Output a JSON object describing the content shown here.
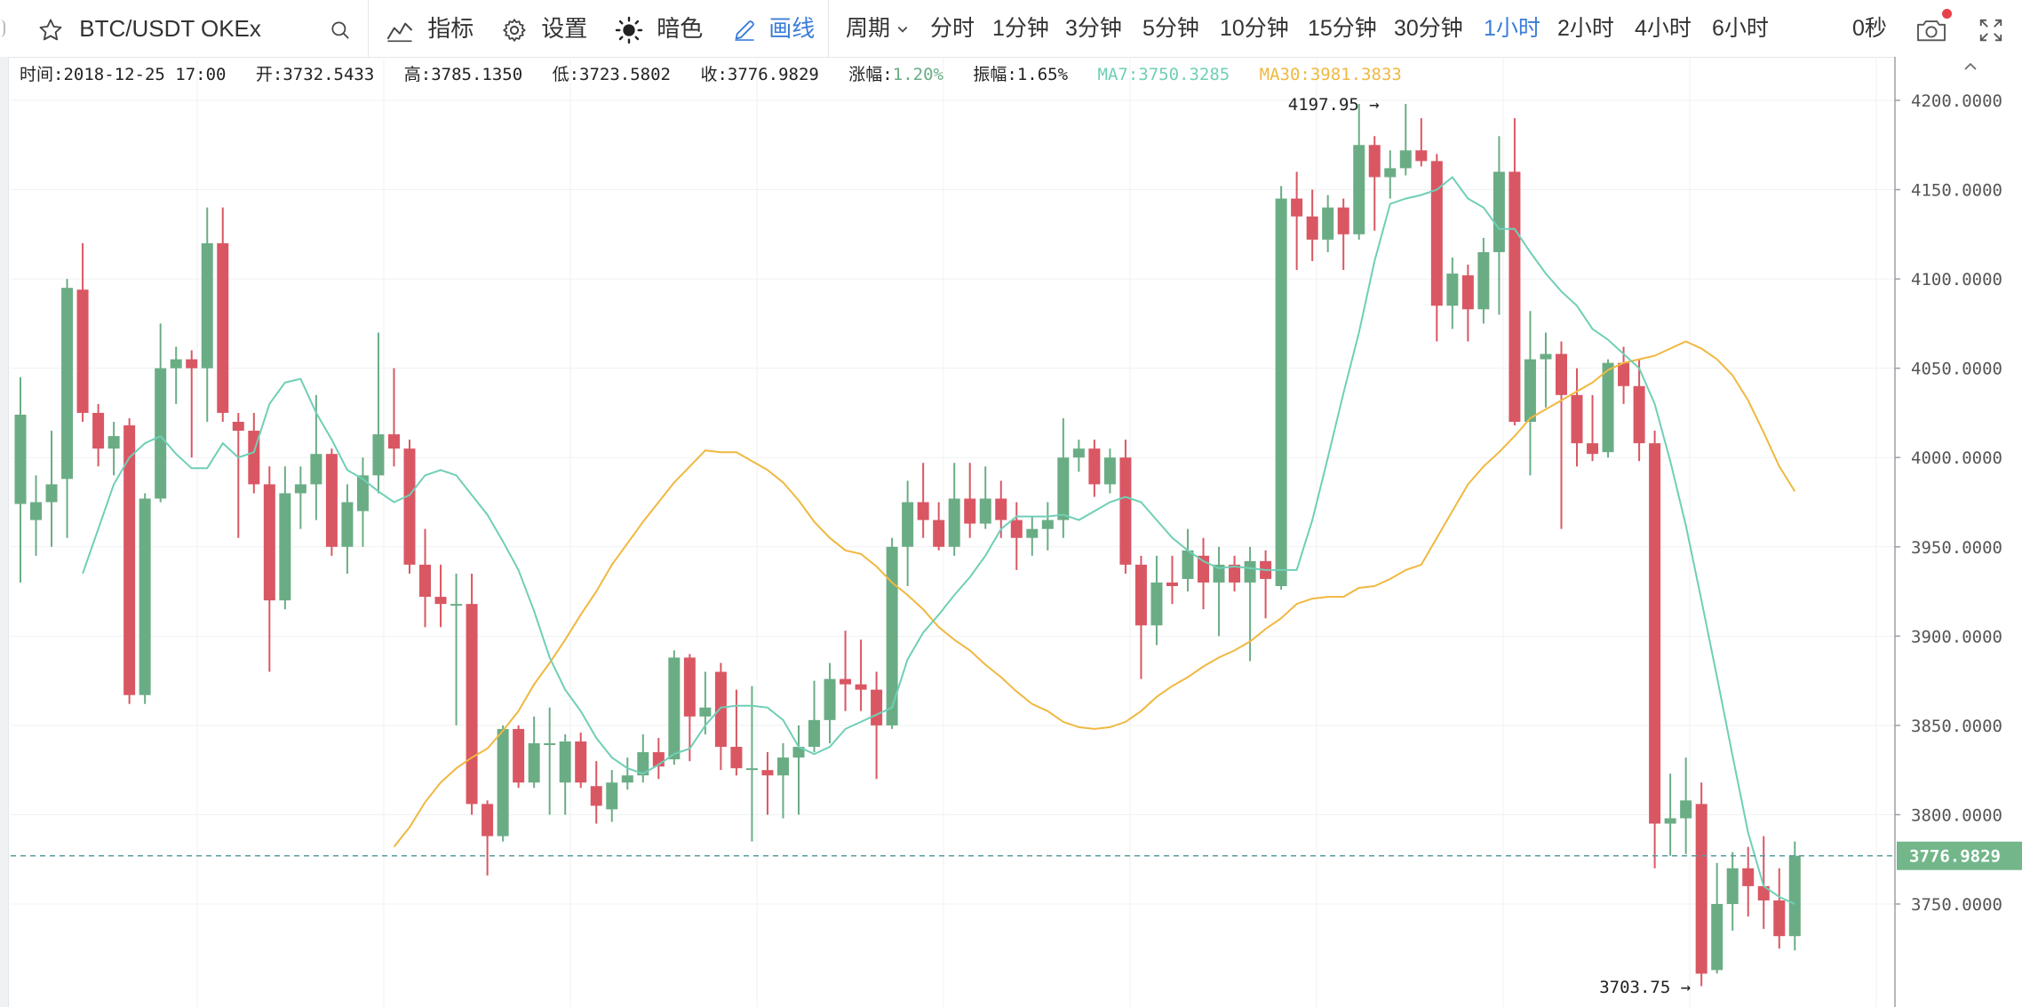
{
  "toolbar": {
    "symbol": "BTC/USDT OKEx",
    "indicators_label": "指标",
    "settings_label": "设置",
    "dark_label": "暗色",
    "draw_label": "画线",
    "period_label": "周期",
    "periods": [
      "分时",
      "1分钟",
      "3分钟",
      "5分钟",
      "10分钟",
      "15分钟",
      "30分钟",
      "1小时",
      "2小时",
      "4小时",
      "6小时"
    ],
    "active_period": "1小时",
    "countdown": "0秒",
    "icons": {
      "star": "star-icon",
      "search": "search-icon",
      "indicators": "line-chart-icon",
      "settings": "gear-icon",
      "dark": "sun-icon",
      "draw": "pencil-icon",
      "period": "chevron-down-icon",
      "screenshot": "camera-icon",
      "fullscreen": "fullscreen-icon",
      "collapse": "chevron-up-icon"
    }
  },
  "info": {
    "time": "时间:2018-12-25 17:00",
    "open": "开:3732.5433",
    "high": "高:3785.1350",
    "low": "低:3723.5802",
    "close": "收:3776.9829",
    "change_label": "涨幅:",
    "change_value": "1.20%",
    "amplitude": "振幅:1.65%",
    "ma7": "MA7:3750.3285",
    "ma30": "MA30:3981.3833"
  },
  "colors": {
    "up": "#6aad85",
    "down": "#d95763",
    "ma7": "#6fcfb6",
    "ma30": "#f0b840",
    "active": "#3b7dd8",
    "price_tag": "#72b68a"
  },
  "chart_data": {
    "type": "candlestick",
    "symbol": "BTC/USDT OKEx",
    "interval": "1小时",
    "ylim": [
      3690,
      4225
    ],
    "yticks": [
      "4200.0000",
      "4150.0000",
      "4100.0000",
      "4050.0000",
      "4000.0000",
      "3950.0000",
      "3900.0000",
      "3850.0000",
      "3800.0000",
      "3750.0000"
    ],
    "y_axis_side": "right",
    "grid": true,
    "current_price": 3776.9829,
    "current_price_label": "3776.9829",
    "high_mark": {
      "value": 4197.95,
      "label": "4197.95"
    },
    "low_mark": {
      "value": 3703.75,
      "label": "3703.75"
    },
    "candles": [
      {
        "o": 3974,
        "h": 4045,
        "l": 3930,
        "c": 4024
      },
      {
        "o": 3965,
        "h": 3990,
        "l": 3945,
        "c": 3975
      },
      {
        "o": 3975,
        "h": 4015,
        "l": 3950,
        "c": 3985
      },
      {
        "o": 3988,
        "h": 4100,
        "l": 3955,
        "c": 4095
      },
      {
        "o": 4094,
        "h": 4120,
        "l": 4020,
        "c": 4025
      },
      {
        "o": 4025,
        "h": 4030,
        "l": 3995,
        "c": 4005
      },
      {
        "o": 4005,
        "h": 4020,
        "l": 3990,
        "c": 4012
      },
      {
        "o": 4018,
        "h": 4022,
        "l": 3862,
        "c": 3867
      },
      {
        "o": 3867,
        "h": 3980,
        "l": 3862,
        "c": 3977
      },
      {
        "o": 3977,
        "h": 4075,
        "l": 3975,
        "c": 4050
      },
      {
        "o": 4050,
        "h": 4062,
        "l": 4030,
        "c": 4055
      },
      {
        "o": 4055,
        "h": 4060,
        "l": 4000,
        "c": 4050
      },
      {
        "o": 4050,
        "h": 4140,
        "l": 4020,
        "c": 4120
      },
      {
        "o": 4120,
        "h": 4140,
        "l": 4020,
        "c": 4025
      },
      {
        "o": 4020,
        "h": 4025,
        "l": 3955,
        "c": 4015
      },
      {
        "o": 4015,
        "h": 4025,
        "l": 3980,
        "c": 3985
      },
      {
        "o": 3985,
        "h": 3995,
        "l": 3880,
        "c": 3920
      },
      {
        "o": 3920,
        "h": 3995,
        "l": 3915,
        "c": 3980
      },
      {
        "o": 3980,
        "h": 3995,
        "l": 3960,
        "c": 3985
      },
      {
        "o": 3985,
        "h": 4035,
        "l": 3965,
        "c": 4002
      },
      {
        "o": 4002,
        "h": 4005,
        "l": 3945,
        "c": 3950
      },
      {
        "o": 3950,
        "h": 3985,
        "l": 3935,
        "c": 3975
      },
      {
        "o": 3970,
        "h": 4000,
        "l": 3950,
        "c": 3990
      },
      {
        "o": 3990,
        "h": 4070,
        "l": 3980,
        "c": 4013
      },
      {
        "o": 4013,
        "h": 4050,
        "l": 3995,
        "c": 4005
      },
      {
        "o": 4005,
        "h": 4010,
        "l": 3935,
        "c": 3940
      },
      {
        "o": 3940,
        "h": 3960,
        "l": 3905,
        "c": 3922
      },
      {
        "o": 3922,
        "h": 3940,
        "l": 3905,
        "c": 3918
      },
      {
        "o": 3918,
        "h": 3935,
        "l": 3850,
        "c": 3918
      },
      {
        "o": 3918,
        "h": 3935,
        "l": 3800,
        "c": 3806
      },
      {
        "o": 3806,
        "h": 3808,
        "l": 3766,
        "c": 3788
      },
      {
        "o": 3788,
        "h": 3850,
        "l": 3785,
        "c": 3848
      },
      {
        "o": 3848,
        "h": 3850,
        "l": 3815,
        "c": 3818
      },
      {
        "o": 3818,
        "h": 3855,
        "l": 3815,
        "c": 3840
      },
      {
        "o": 3840,
        "h": 3860,
        "l": 3800,
        "c": 3840
      },
      {
        "o": 3818,
        "h": 3845,
        "l": 3800,
        "c": 3841
      },
      {
        "o": 3841,
        "h": 3846,
        "l": 3815,
        "c": 3818
      },
      {
        "o": 3816,
        "h": 3830,
        "l": 3795,
        "c": 3805
      },
      {
        "o": 3803,
        "h": 3825,
        "l": 3796,
        "c": 3818
      },
      {
        "o": 3818,
        "h": 3832,
        "l": 3814,
        "c": 3822
      },
      {
        "o": 3822,
        "h": 3845,
        "l": 3818,
        "c": 3835
      },
      {
        "o": 3835,
        "h": 3843,
        "l": 3820,
        "c": 3827
      },
      {
        "o": 3831,
        "h": 3892,
        "l": 3828,
        "c": 3888
      },
      {
        "o": 3888,
        "h": 3890,
        "l": 3830,
        "c": 3855
      },
      {
        "o": 3855,
        "h": 3880,
        "l": 3845,
        "c": 3860
      },
      {
        "o": 3880,
        "h": 3885,
        "l": 3825,
        "c": 3838
      },
      {
        "o": 3838,
        "h": 3870,
        "l": 3822,
        "c": 3826
      },
      {
        "o": 3826,
        "h": 3872,
        "l": 3785,
        "c": 3826
      },
      {
        "o": 3825,
        "h": 3835,
        "l": 3800,
        "c": 3822
      },
      {
        "o": 3822,
        "h": 3840,
        "l": 3798,
        "c": 3832
      },
      {
        "o": 3832,
        "h": 3850,
        "l": 3800,
        "c": 3838
      },
      {
        "o": 3838,
        "h": 3875,
        "l": 3835,
        "c": 3853
      },
      {
        "o": 3853,
        "h": 3885,
        "l": 3840,
        "c": 3876
      },
      {
        "o": 3876,
        "h": 3903,
        "l": 3858,
        "c": 3873
      },
      {
        "o": 3873,
        "h": 3898,
        "l": 3858,
        "c": 3870
      },
      {
        "o": 3870,
        "h": 3880,
        "l": 3820,
        "c": 3850
      },
      {
        "o": 3850,
        "h": 3955,
        "l": 3848,
        "c": 3950
      },
      {
        "o": 3950,
        "h": 3987,
        "l": 3928,
        "c": 3975
      },
      {
        "o": 3975,
        "h": 3997,
        "l": 3955,
        "c": 3965
      },
      {
        "o": 3965,
        "h": 3975,
        "l": 3948,
        "c": 3950
      },
      {
        "o": 3950,
        "h": 3997,
        "l": 3945,
        "c": 3977
      },
      {
        "o": 3977,
        "h": 3997,
        "l": 3955,
        "c": 3963
      },
      {
        "o": 3963,
        "h": 3995,
        "l": 3960,
        "c": 3977
      },
      {
        "o": 3977,
        "h": 3987,
        "l": 3955,
        "c": 3965
      },
      {
        "o": 3965,
        "h": 3975,
        "l": 3937,
        "c": 3955
      },
      {
        "o": 3955,
        "h": 3967,
        "l": 3945,
        "c": 3960
      },
      {
        "o": 3960,
        "h": 3975,
        "l": 3948,
        "c": 3965
      },
      {
        "o": 3965,
        "h": 4022,
        "l": 3955,
        "c": 4000
      },
      {
        "o": 4000,
        "h": 4010,
        "l": 3992,
        "c": 4005
      },
      {
        "o": 4005,
        "h": 4010,
        "l": 3978,
        "c": 3985
      },
      {
        "o": 3985,
        "h": 4005,
        "l": 3980,
        "c": 4000
      },
      {
        "o": 4000,
        "h": 4010,
        "l": 3935,
        "c": 3940
      },
      {
        "o": 3940,
        "h": 3945,
        "l": 3876,
        "c": 3906
      },
      {
        "o": 3906,
        "h": 3945,
        "l": 3895,
        "c": 3930
      },
      {
        "o": 3930,
        "h": 3945,
        "l": 3918,
        "c": 3928
      },
      {
        "o": 3932,
        "h": 3960,
        "l": 3925,
        "c": 3948
      },
      {
        "o": 3945,
        "h": 3955,
        "l": 3915,
        "c": 3930
      },
      {
        "o": 3930,
        "h": 3950,
        "l": 3900,
        "c": 3940
      },
      {
        "o": 3940,
        "h": 3945,
        "l": 3925,
        "c": 3930
      },
      {
        "o": 3930,
        "h": 3950,
        "l": 3886,
        "c": 3942
      },
      {
        "o": 3942,
        "h": 3948,
        "l": 3910,
        "c": 3932
      },
      {
        "o": 3928,
        "h": 4152,
        "l": 3926,
        "c": 4145
      },
      {
        "o": 4145,
        "h": 4160,
        "l": 4105,
        "c": 4135
      },
      {
        "o": 4135,
        "h": 4150,
        "l": 4110,
        "c": 4122
      },
      {
        "o": 4122,
        "h": 4147,
        "l": 4115,
        "c": 4140
      },
      {
        "o": 4140,
        "h": 4145,
        "l": 4105,
        "c": 4125
      },
      {
        "o": 4125,
        "h": 4198,
        "l": 4122,
        "c": 4175
      },
      {
        "o": 4175,
        "h": 4180,
        "l": 4127,
        "c": 4157
      },
      {
        "o": 4157,
        "h": 4172,
        "l": 4145,
        "c": 4162
      },
      {
        "o": 4162,
        "h": 4198,
        "l": 4158,
        "c": 4172
      },
      {
        "o": 4172,
        "h": 4190,
        "l": 4163,
        "c": 4166
      },
      {
        "o": 4166,
        "h": 4170,
        "l": 4065,
        "c": 4085
      },
      {
        "o": 4085,
        "h": 4112,
        "l": 4072,
        "c": 4103
      },
      {
        "o": 4102,
        "h": 4108,
        "l": 4065,
        "c": 4083
      },
      {
        "o": 4083,
        "h": 4123,
        "l": 4075,
        "c": 4115
      },
      {
        "o": 4115,
        "h": 4180,
        "l": 4080,
        "c": 4160
      },
      {
        "o": 4160,
        "h": 4190,
        "l": 4018,
        "c": 4020
      },
      {
        "o": 4020,
        "h": 4082,
        "l": 3990,
        "c": 4055
      },
      {
        "o": 4055,
        "h": 4070,
        "l": 4028,
        "c": 4058
      },
      {
        "o": 4058,
        "h": 4065,
        "l": 3960,
        "c": 4035
      },
      {
        "o": 4035,
        "h": 4050,
        "l": 3995,
        "c": 4008
      },
      {
        "o": 4008,
        "h": 4035,
        "l": 3998,
        "c": 4002
      },
      {
        "o": 4003,
        "h": 4055,
        "l": 4000,
        "c": 4053
      },
      {
        "o": 4053,
        "h": 4062,
        "l": 4030,
        "c": 4040
      },
      {
        "o": 4040,
        "h": 4055,
        "l": 3998,
        "c": 4008
      },
      {
        "o": 4008,
        "h": 4015,
        "l": 3770,
        "c": 3795
      },
      {
        "o": 3795,
        "h": 3823,
        "l": 3777,
        "c": 3798
      },
      {
        "o": 3798,
        "h": 3832,
        "l": 3778,
        "c": 3808
      },
      {
        "o": 3806,
        "h": 3818,
        "l": 3704,
        "c": 3711
      },
      {
        "o": 3713,
        "h": 3773,
        "l": 3711,
        "c": 3750
      },
      {
        "o": 3750,
        "h": 3779,
        "l": 3735,
        "c": 3770
      },
      {
        "o": 3770,
        "h": 3782,
        "l": 3743,
        "c": 3760
      },
      {
        "o": 3760,
        "h": 3788,
        "l": 3736,
        "c": 3752
      },
      {
        "o": 3752,
        "h": 3770,
        "l": 3725,
        "c": 3732
      },
      {
        "o": 3732,
        "h": 3785,
        "l": 3724,
        "c": 3777
      }
    ],
    "ma7_name": "MA7",
    "ma7": [
      3935,
      3960,
      3985,
      4000,
      4008,
      4012,
      4002,
      3994,
      3994,
      4008,
      4000,
      4003,
      4030,
      4042,
      4044,
      4025,
      4010,
      3993,
      3988,
      3981,
      3975,
      3979,
      3990,
      3993,
      3990,
      3979,
      3968,
      3953,
      3937,
      3914,
      3888,
      3870,
      3858,
      3843,
      3832,
      3826,
      3823,
      3828,
      3834,
      3837,
      3850,
      3860,
      3861,
      3861,
      3860,
      3853,
      3838,
      3834,
      3838,
      3848,
      3852,
      3856,
      3860,
      3887,
      3902,
      3912,
      3923,
      3933,
      3945,
      3960,
      3967,
      3967,
      3967,
      3968,
      3965,
      3970,
      3975,
      3978,
      3975,
      3965,
      3955,
      3948,
      3942,
      3938,
      3939,
      3938,
      3937,
      3937,
      3937,
      3965,
      4000,
      4036,
      4070,
      4110,
      4142,
      4145,
      4147,
      4150,
      4157,
      4145,
      4140,
      4128,
      4128,
      4115,
      4103,
      4093,
      4085,
      4072,
      4066,
      4058,
      4050,
      4030,
      3998,
      3962,
      3920,
      3877,
      3833,
      3790,
      3760,
      3754,
      3750
    ],
    "ma30_name": "MA30",
    "ma30": [
      3782,
      3793,
      3807,
      3818,
      3826,
      3832,
      3837,
      3847,
      3858,
      3873,
      3885,
      3898,
      3912,
      3925,
      3940,
      3952,
      3964,
      3975,
      3986,
      3995,
      4004,
      4003,
      4003,
      3998,
      3993,
      3986,
      3976,
      3964,
      3955,
      3948,
      3946,
      3939,
      3930,
      3923,
      3915,
      3905,
      3898,
      3892,
      3884,
      3877,
      3869,
      3862,
      3858,
      3852,
      3849,
      3848,
      3849,
      3852,
      3858,
      3866,
      3872,
      3877,
      3883,
      3888,
      3892,
      3897,
      3904,
      3910,
      3918,
      3921,
      3922,
      3922,
      3927,
      3928,
      3932,
      3937,
      3940,
      3955,
      3970,
      3985,
      3995,
      4003,
      4012,
      4022,
      4027,
      4032,
      4037,
      4042,
      4049,
      4053,
      4055,
      4057,
      4061,
      4065,
      4061,
      4055,
      4046,
      4032,
      4014,
      3995,
      3981
    ]
  }
}
